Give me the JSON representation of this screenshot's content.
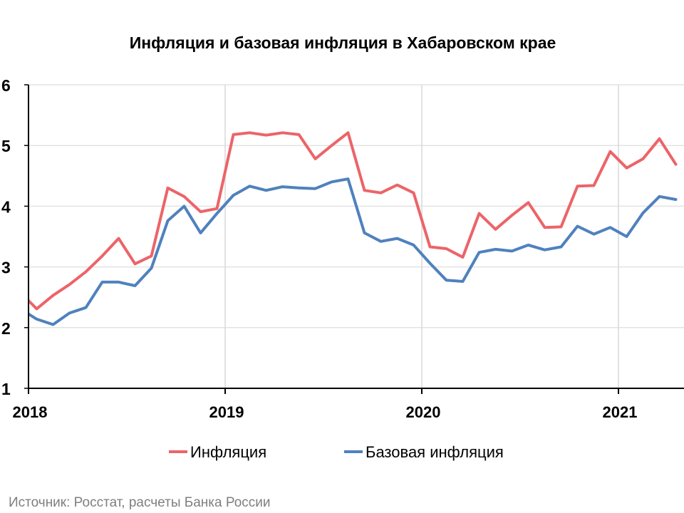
{
  "chart_data": {
    "type": "line",
    "title": "Инфляция и базовая инфляция в Хабаровском крае",
    "xlabel": "",
    "ylabel": "",
    "ylim": [
      1,
      6
    ],
    "yticks": [
      "1",
      "2",
      "3",
      "4",
      "5",
      "6"
    ],
    "xticks": [
      "2018",
      "2019",
      "2020",
      "2021"
    ],
    "grid": true,
    "legend_position": "bottom",
    "x_start": "Dec 2017",
    "x_frequency": "monthly",
    "x_end": "Apr 2021",
    "series": [
      {
        "name": "Инфляция",
        "color": "#ec6468",
        "values": [
          2.58,
          2.31,
          2.53,
          2.71,
          2.92,
          3.18,
          3.47,
          3.05,
          3.18,
          4.3,
          4.16,
          3.91,
          3.96,
          5.18,
          5.21,
          5.17,
          5.21,
          5.18,
          4.78,
          5.0,
          5.21,
          4.26,
          4.22,
          4.35,
          4.22,
          3.33,
          3.3,
          3.16,
          3.88,
          3.62,
          3.85,
          4.06,
          3.65,
          3.66,
          4.33,
          4.34,
          4.9,
          4.63,
          4.78,
          5.11,
          4.69
        ]
      },
      {
        "name": "Базовая инфляция",
        "color": "#4f81bd",
        "values": [
          2.31,
          2.14,
          2.05,
          2.24,
          2.33,
          2.75,
          2.75,
          2.69,
          2.98,
          3.76,
          4.0,
          3.56,
          3.88,
          4.18,
          4.33,
          4.26,
          4.32,
          4.3,
          4.29,
          4.4,
          4.45,
          3.56,
          3.42,
          3.47,
          3.36,
          3.06,
          2.78,
          2.76,
          3.24,
          3.29,
          3.26,
          3.36,
          3.28,
          3.33,
          3.67,
          3.54,
          3.65,
          3.5,
          3.89,
          4.16,
          4.11
        ]
      }
    ],
    "source": "Источник: Росстат, расчеты Банка России"
  }
}
